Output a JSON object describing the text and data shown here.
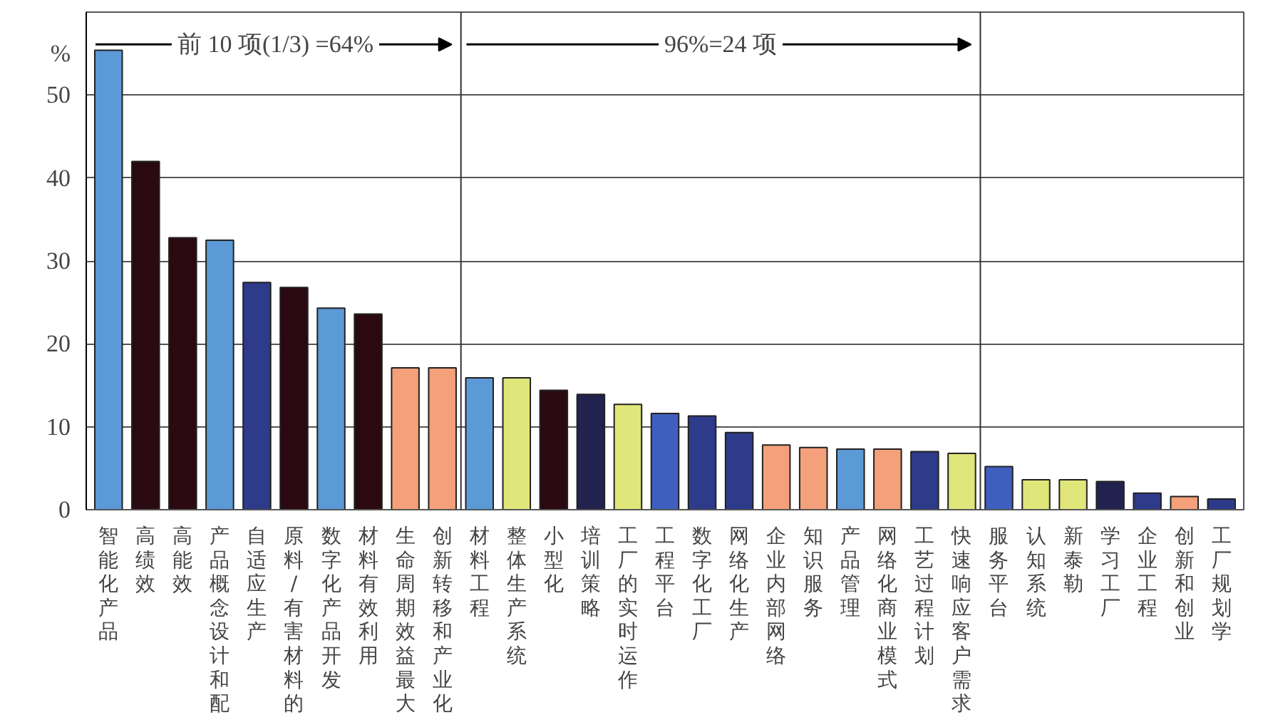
{
  "chart_data": {
    "type": "bar",
    "categories": [
      "智能化产品",
      "高绩效",
      "高能效",
      "产品概念设计和配",
      "自适应生产",
      "原料/有害材料的",
      "数字化产品开发",
      "材料有效利用",
      "生命周期效益最大",
      "创新转移和产业化",
      "材料工程",
      "整体生产系统",
      "小型化",
      "培训策略",
      "工厂的实时运作",
      "工程平台",
      "数字化工厂",
      "网络化生产",
      "企业内部网络",
      "知识服务",
      "产品管理",
      "网络化商业模式",
      "工艺过程计划",
      "快速响应客户需求",
      "服务平台",
      "认知系统",
      "新泰勒",
      "学习工厂",
      "企业工程",
      "创新和创业",
      "工厂规划学"
    ],
    "values": [
      55.4,
      42.0,
      32.8,
      32.5,
      27.4,
      26.8,
      24.3,
      23.6,
      17.1,
      17.1,
      15.9,
      15.9,
      14.4,
      13.9,
      12.7,
      11.6,
      11.3,
      9.3,
      7.8,
      7.5,
      7.3,
      7.3,
      7.0,
      6.8,
      5.2,
      3.6,
      3.6,
      3.4,
      2.0,
      1.6,
      1.3
    ],
    "colors": [
      "#5b9ad6",
      "#2a0a10",
      "#2a0a10",
      "#5b9ad6",
      "#2e3a8a",
      "#2a0a10",
      "#5b9ad6",
      "#2a0a10",
      "#f4a07a",
      "#f4a07a",
      "#5b9ad6",
      "#e0e67a",
      "#2a0a10",
      "#22224f",
      "#e0e67a",
      "#3f5fbf",
      "#2e3a8a",
      "#2e3a8a",
      "#f4a07a",
      "#f4a07a",
      "#5b9ad6",
      "#f4a07a",
      "#2e3a8a",
      "#e0e67a",
      "#3f5fbf",
      "#e0e67a",
      "#e0e67a",
      "#22224f",
      "#2e3a8a",
      "#f4a07a",
      "#2e3a8a"
    ],
    "ylabel": "%",
    "ylim": [
      0,
      60
    ],
    "yticks": [
      0,
      10,
      20,
      30,
      40,
      50
    ],
    "grid": "y",
    "annotations": [
      "前 10 项(1/3) =64%",
      "96%=24 项"
    ]
  }
}
